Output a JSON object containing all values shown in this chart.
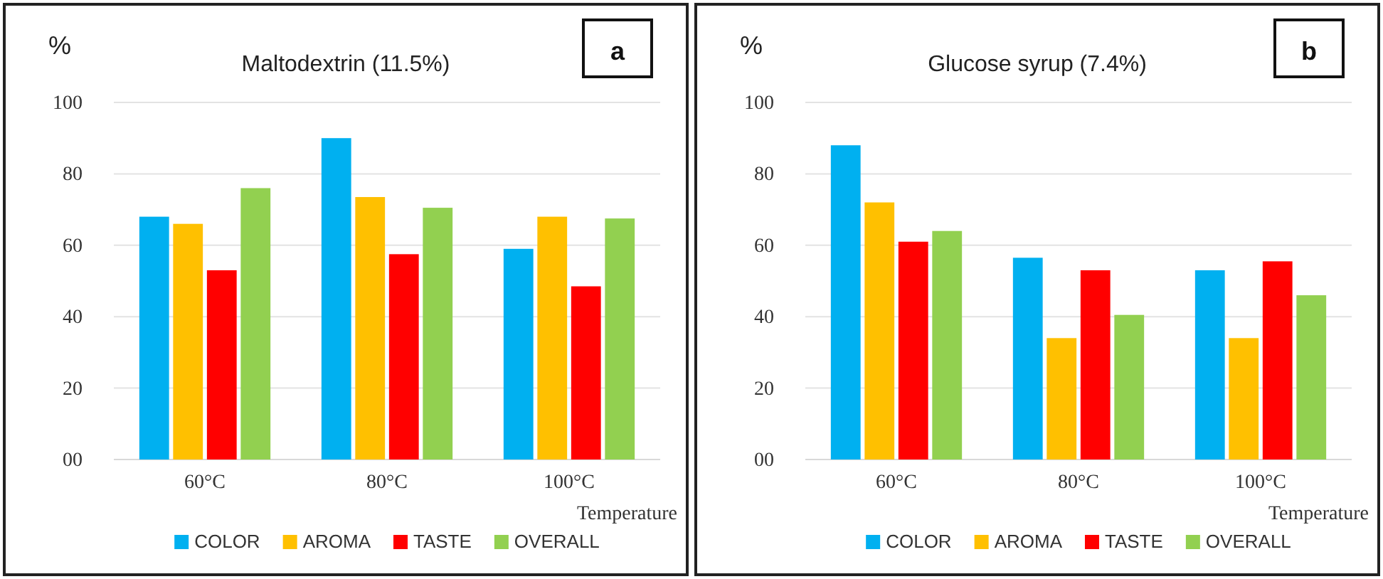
{
  "chart_data": [
    {
      "type": "bar",
      "title": "Maltodextrin (11.5%)",
      "ylabel": "%",
      "xlabel": "Temperature",
      "annotations": [
        "a"
      ],
      "categories": [
        "60°C",
        "80°C",
        "100°C"
      ],
      "series": [
        {
          "name": "COLOR",
          "color": "#00b0f0",
          "values": [
            68,
            90,
            59
          ]
        },
        {
          "name": "AROMA",
          "color": "#ffc000",
          "values": [
            66,
            73.5,
            68
          ]
        },
        {
          "name": "TASTE",
          "color": "#ff0000",
          "values": [
            53,
            57.5,
            48.5
          ]
        },
        {
          "name": "OVERALL",
          "color": "#92d050",
          "values": [
            76,
            70.5,
            67.5
          ]
        }
      ],
      "ylim": [
        0,
        100
      ],
      "yticks": [
        {
          "value": 0,
          "label": "00"
        },
        20,
        40,
        60,
        80,
        100
      ],
      "grid": "y",
      "legend": "bottom"
    },
    {
      "type": "bar",
      "title": "Glucose syrup (7.4%)",
      "ylabel": "%",
      "xlabel": "Temperature",
      "annotations": [
        "b"
      ],
      "categories": [
        "60°C",
        "80°C",
        "100°C"
      ],
      "series": [
        {
          "name": "COLOR",
          "color": "#00b0f0",
          "values": [
            88,
            56.5,
            53
          ]
        },
        {
          "name": "AROMA",
          "color": "#ffc000",
          "values": [
            72,
            34,
            34
          ]
        },
        {
          "name": "TASTE",
          "color": "#ff0000",
          "values": [
            61,
            53,
            55.5
          ]
        },
        {
          "name": "OVERALL",
          "color": "#92d050",
          "values": [
            64,
            40.5,
            46
          ]
        }
      ],
      "ylim": [
        0,
        100
      ],
      "yticks": [
        {
          "value": 0,
          "label": "00"
        },
        20,
        40,
        60,
        80,
        100
      ],
      "grid": "y",
      "legend": "bottom"
    }
  ]
}
